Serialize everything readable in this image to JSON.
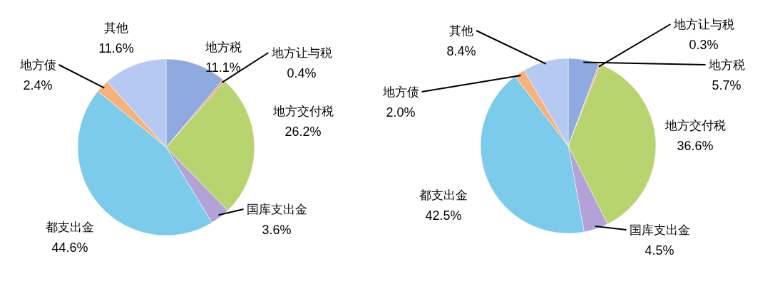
{
  "chart_data": [
    {
      "type": "pie",
      "categories": [
        "地方税",
        "地方让与税",
        "地方交付税",
        "国库支出金",
        "都支出金",
        "地方债",
        "其他"
      ],
      "values": [
        11.1,
        0.4,
        26.2,
        3.6,
        44.6,
        2.4,
        11.6
      ],
      "value_labels": [
        "11.1%",
        "0.4%",
        "26.2%",
        "3.6%",
        "44.6%",
        "2.4%",
        "11.6%"
      ],
      "colors": [
        "#8eaadf",
        "#f29b96",
        "#b7d46e",
        "#b2a2d8",
        "#7ccbea",
        "#f7b27c",
        "#b5c9f2"
      ]
    },
    {
      "type": "pie",
      "categories": [
        "地方税",
        "地方让与税",
        "地方交付税",
        "国库支出金",
        "都支出金",
        "地方债",
        "其他"
      ],
      "values": [
        5.7,
        0.3,
        36.6,
        4.5,
        42.5,
        2.0,
        8.4
      ],
      "value_labels": [
        "5.7%",
        "0.3%",
        "36.6%",
        "4.5%",
        "42.5%",
        "2.0%",
        "8.4%"
      ],
      "colors": [
        "#8eaadf",
        "#f29b96",
        "#b7d46e",
        "#b2a2d8",
        "#7ccbea",
        "#f7b27c",
        "#b5c9f2"
      ]
    }
  ]
}
